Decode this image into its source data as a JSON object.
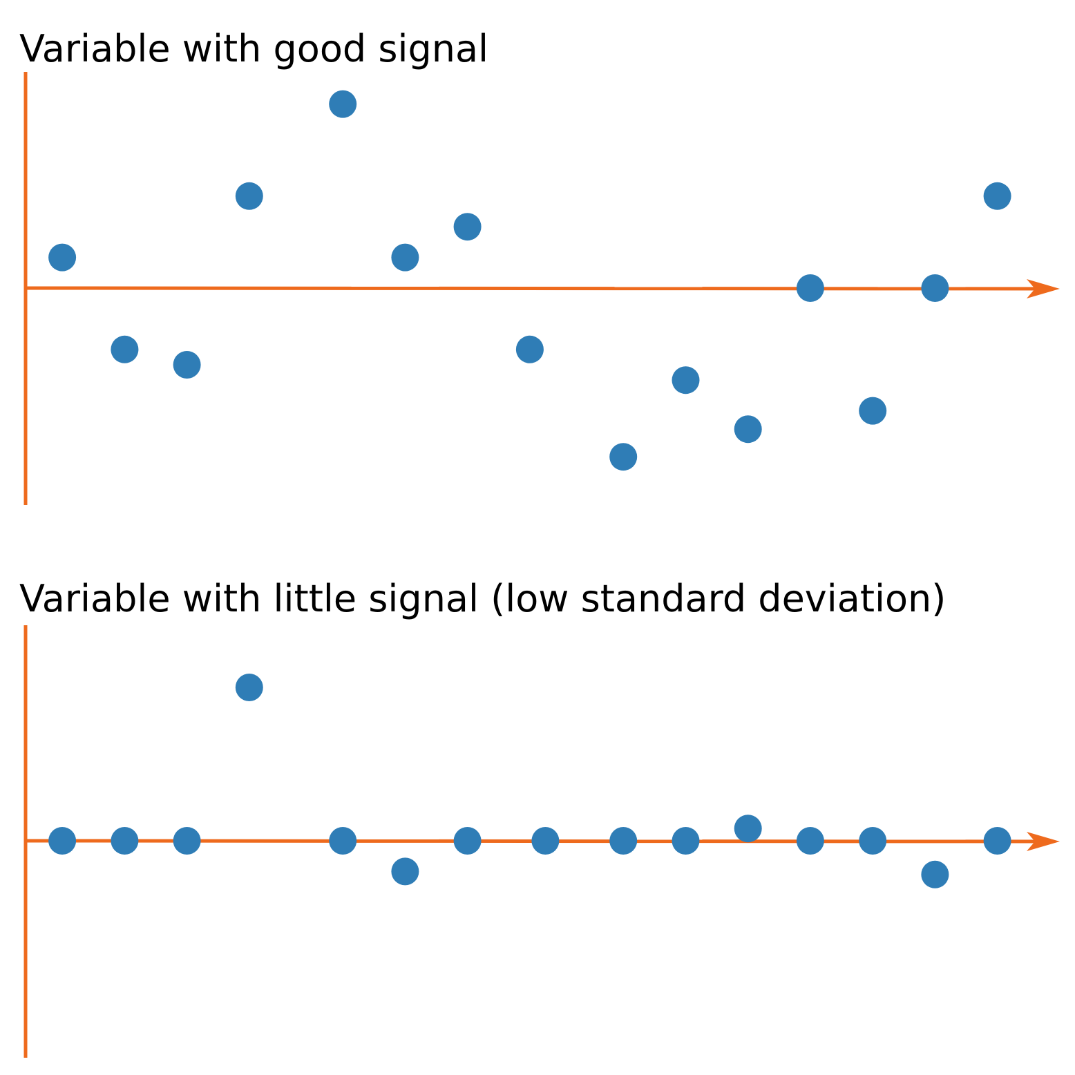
{
  "colors": {
    "axis": "#ee6a1d",
    "point": "#2f7db6",
    "text": "#000000"
  },
  "chart_data": [
    {
      "type": "scatter",
      "title": "Variable with good signal",
      "xlabel": "",
      "ylabel": "",
      "grid": false,
      "xlim": [
        0,
        17
      ],
      "ylim": [
        -6,
        7
      ],
      "points": [
        {
          "x": 0.5,
          "y": 1.0
        },
        {
          "x": 1.5,
          "y": -2.0
        },
        {
          "x": 2.5,
          "y": -2.5
        },
        {
          "x": 3.5,
          "y": 3.0
        },
        {
          "x": 5.0,
          "y": 6.0
        },
        {
          "x": 6.0,
          "y": 1.0
        },
        {
          "x": 7.0,
          "y": 2.0
        },
        {
          "x": 8.0,
          "y": -2.0
        },
        {
          "x": 9.5,
          "y": -5.5
        },
        {
          "x": 10.5,
          "y": -3.0
        },
        {
          "x": 11.5,
          "y": -4.6
        },
        {
          "x": 12.5,
          "y": 0.0
        },
        {
          "x": 13.5,
          "y": -4.0
        },
        {
          "x": 14.5,
          "y": 0.0
        },
        {
          "x": 15.5,
          "y": 3.0
        }
      ]
    },
    {
      "type": "scatter",
      "title": "Variable with little signal (low standard deviation)",
      "xlabel": "",
      "ylabel": "",
      "grid": false,
      "xlim": [
        0,
        17
      ],
      "ylim": [
        -7,
        7
      ],
      "points": [
        {
          "x": 0.5,
          "y": 0.0
        },
        {
          "x": 1.5,
          "y": 0.0
        },
        {
          "x": 2.5,
          "y": 0.0
        },
        {
          "x": 3.5,
          "y": 5.0
        },
        {
          "x": 5.0,
          "y": 0.0
        },
        {
          "x": 6.0,
          "y": -1.0
        },
        {
          "x": 7.0,
          "y": 0.0
        },
        {
          "x": 8.25,
          "y": 0.0
        },
        {
          "x": 9.5,
          "y": 0.0
        },
        {
          "x": 10.5,
          "y": 0.0
        },
        {
          "x": 11.5,
          "y": 0.4
        },
        {
          "x": 12.5,
          "y": 0.0
        },
        {
          "x": 13.5,
          "y": 0.0
        },
        {
          "x": 14.5,
          "y": -1.1
        },
        {
          "x": 15.5,
          "y": 0.0
        }
      ]
    }
  ]
}
